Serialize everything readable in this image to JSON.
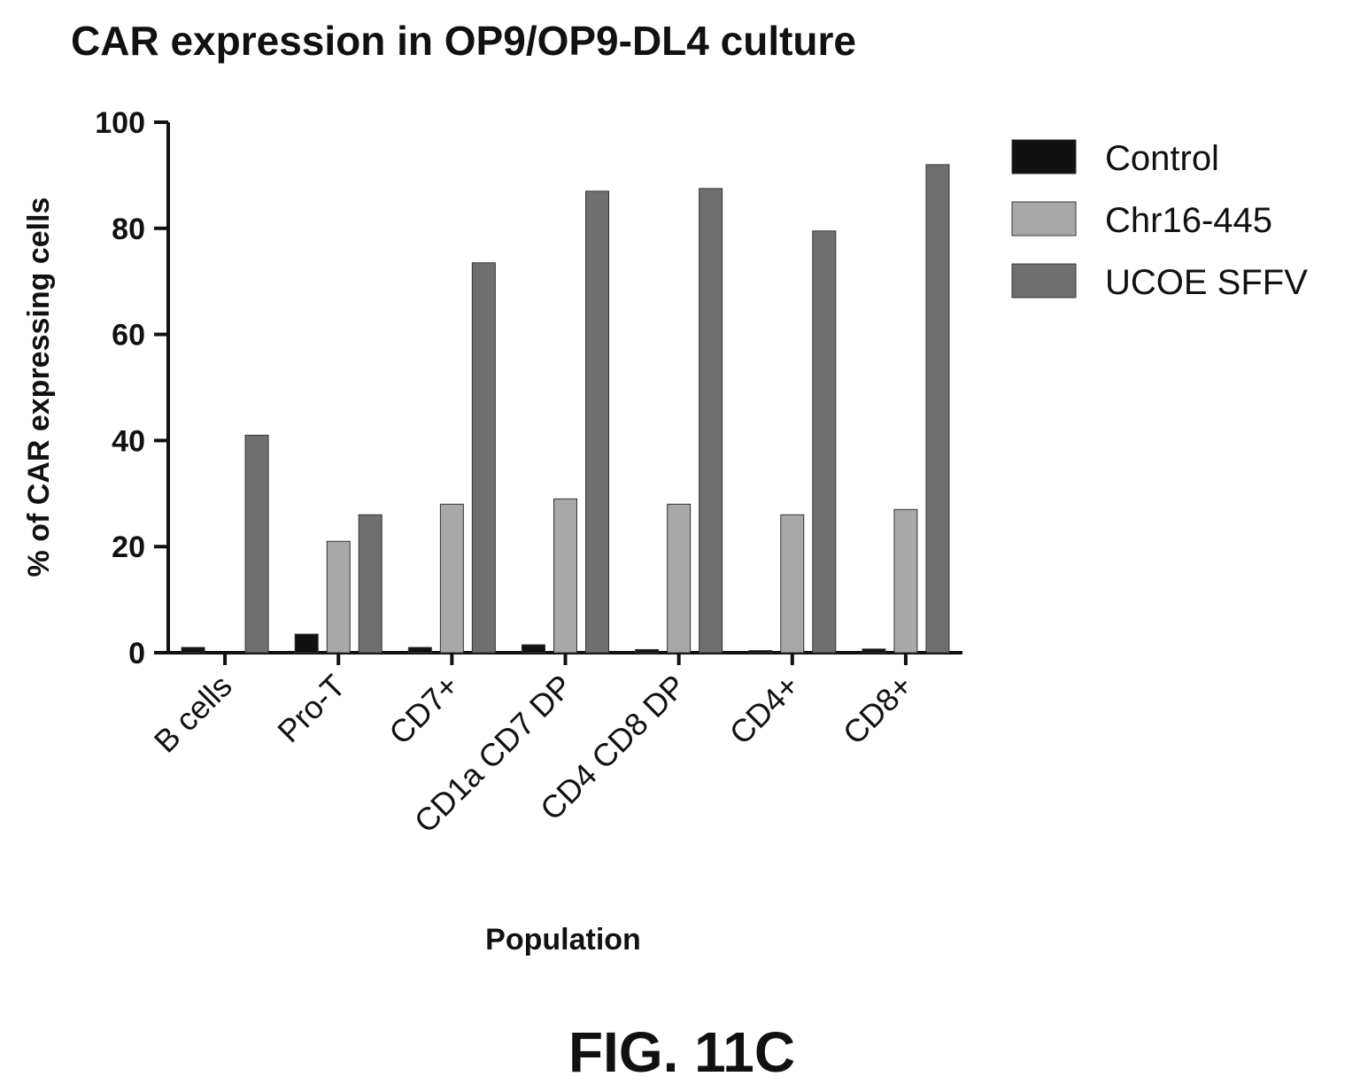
{
  "chart_data": {
    "type": "bar",
    "title": "CAR expression in OP9/OP9-DL4 culture",
    "xlabel": "Population",
    "ylabel": "% of CAR expressing cells",
    "ylim": [
      0,
      100
    ],
    "yticks": [
      0,
      20,
      40,
      60,
      80,
      100
    ],
    "categories": [
      "B cells",
      "Pro-T",
      "CD7+",
      "CD1a CD7 DP",
      "CD4 CD8 DP",
      "CD4+",
      "CD8+"
    ],
    "series": [
      {
        "name": "Control",
        "color": "#111111",
        "values": [
          1.0,
          3.5,
          1.0,
          1.5,
          0.6,
          0.4,
          0.7
        ]
      },
      {
        "name": "Chr16-445",
        "color": "#a8a8a8",
        "values": [
          0.0,
          21.0,
          28.0,
          29.0,
          28.0,
          26.0,
          27.0
        ]
      },
      {
        "name": "UCOE SFFV",
        "color": "#6f6f6f",
        "values": [
          41.0,
          26.0,
          73.5,
          87.0,
          87.5,
          79.5,
          92.0
        ]
      }
    ],
    "legend_position": "top-right",
    "grid": false
  },
  "figure_label": "FIG. 11C"
}
